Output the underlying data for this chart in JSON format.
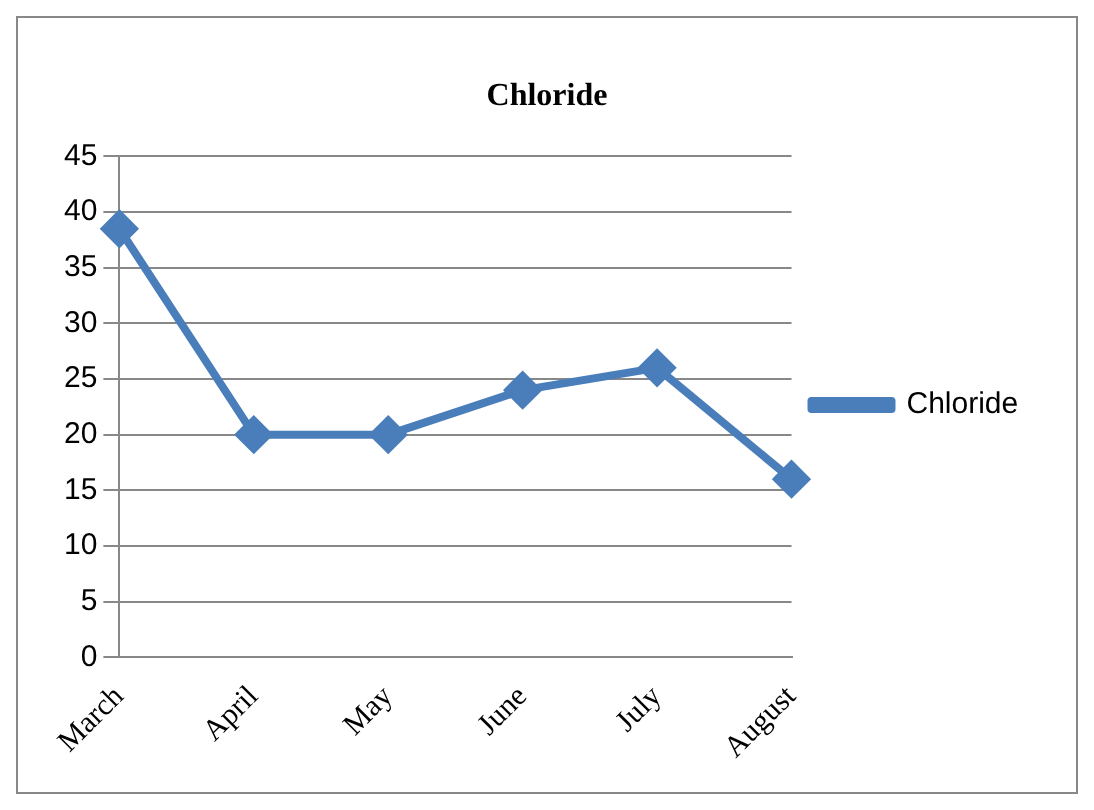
{
  "chart_data": {
    "type": "line",
    "title": "Chloride",
    "categories": [
      "March",
      "April",
      "May",
      "June",
      "July",
      "August"
    ],
    "series": [
      {
        "name": "Chloride",
        "color": "#4a7ebb",
        "values": [
          38.5,
          20,
          20,
          24,
          26,
          16
        ]
      }
    ],
    "ylim": [
      0,
      45
    ],
    "yticks": [
      0,
      5,
      10,
      15,
      20,
      25,
      30,
      35,
      40,
      45
    ],
    "grid": "y",
    "legend": "right",
    "marker": "diamond",
    "line_style": "solid"
  }
}
